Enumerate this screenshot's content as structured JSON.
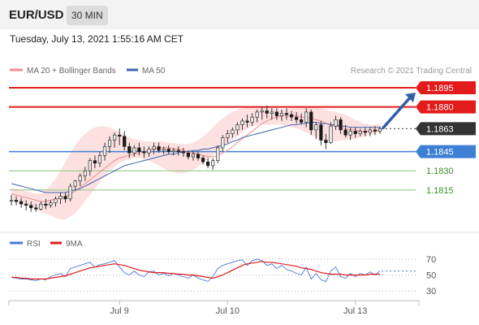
{
  "header": {
    "pair": "EUR/USD",
    "timeframe": "30 MIN",
    "datetime": "Tuesday, July 13, 2021 1:55:16 AM CET"
  },
  "legend": {
    "ma20_bb": "MA 20 + Bollinger Bands",
    "ma50": "MA 50",
    "copyright": "Research © 2021 Trading Central",
    "rsi": "RSI",
    "rsi_ma": "9MA"
  },
  "colors": {
    "ma20": "#f28a8a",
    "bands_fill": "#fde1e1",
    "ma50": "#3b63b0",
    "resistance": "#e31b1b",
    "pivot": "#3c7fd4",
    "support": "#89c47c",
    "support_text": "#3c8f2c",
    "current": "#333333",
    "bull_candle": "#e8e8e8",
    "bear_candle": "#1a1a1a",
    "rsi": "#4b78d8",
    "rsi_ma": "#e31b1b",
    "arrow": "#2e5fa8"
  },
  "chart_data": [
    {
      "type": "candlestick",
      "title": "EUR/USD 30 MIN",
      "ylim": [
        1.1785,
        1.1902
      ],
      "x_tick_labels": [
        "Jul 9",
        "Jul 10",
        "Jul 13"
      ],
      "ohlc": [
        [
          1.1807,
          1.1811,
          1.1803,
          1.1807
        ],
        [
          1.1807,
          1.181,
          1.1803,
          1.1806
        ],
        [
          1.1806,
          1.1809,
          1.1801,
          1.1804
        ],
        [
          1.1804,
          1.1807,
          1.1799,
          1.1803
        ],
        [
          1.1803,
          1.1806,
          1.1798,
          1.1801
        ],
        [
          1.1801,
          1.1804,
          1.1798,
          1.18
        ],
        [
          1.18,
          1.1806,
          1.1799,
          1.1804
        ],
        [
          1.1804,
          1.1808,
          1.18,
          1.1803
        ],
        [
          1.1803,
          1.1807,
          1.1801,
          1.1805
        ],
        [
          1.1805,
          1.181,
          1.1802,
          1.1808
        ],
        [
          1.1808,
          1.1813,
          1.1804,
          1.181
        ],
        [
          1.181,
          1.1813,
          1.1805,
          1.1808
        ],
        [
          1.1808,
          1.182,
          1.1806,
          1.1818
        ],
        [
          1.1818,
          1.1823,
          1.1815,
          1.1822
        ],
        [
          1.1822,
          1.1828,
          1.1818,
          1.1826
        ],
        [
          1.1826,
          1.1833,
          1.1822,
          1.183
        ],
        [
          1.183,
          1.184,
          1.1826,
          1.1838
        ],
        [
          1.1838,
          1.1842,
          1.1832,
          1.1836
        ],
        [
          1.1836,
          1.1845,
          1.1833,
          1.1842
        ],
        [
          1.1842,
          1.1852,
          1.1838,
          1.1849
        ],
        [
          1.1849,
          1.1857,
          1.1844,
          1.1854
        ],
        [
          1.1854,
          1.186,
          1.1848,
          1.1858
        ],
        [
          1.1858,
          1.1863,
          1.185,
          1.1857
        ],
        [
          1.1857,
          1.1861,
          1.1846,
          1.1849
        ],
        [
          1.1849,
          1.1852,
          1.184,
          1.1844
        ],
        [
          1.1844,
          1.185,
          1.1841,
          1.1848
        ],
        [
          1.1848,
          1.1852,
          1.1842,
          1.1845
        ],
        [
          1.1845,
          1.1849,
          1.184,
          1.1844
        ],
        [
          1.1844,
          1.1849,
          1.1841,
          1.1847
        ],
        [
          1.1847,
          1.1852,
          1.1843,
          1.1849
        ],
        [
          1.1849,
          1.1852,
          1.1844,
          1.1846
        ],
        [
          1.1846,
          1.1849,
          1.1843,
          1.1847
        ],
        [
          1.1847,
          1.185,
          1.1843,
          1.1845
        ],
        [
          1.1845,
          1.1848,
          1.1842,
          1.1846
        ],
        [
          1.1846,
          1.1849,
          1.1842,
          1.1845
        ],
        [
          1.1845,
          1.1848,
          1.1841,
          1.1844
        ],
        [
          1.1844,
          1.1846,
          1.1839,
          1.1841
        ],
        [
          1.1841,
          1.1845,
          1.1838,
          1.1843
        ],
        [
          1.1843,
          1.1845,
          1.1838,
          1.184
        ],
        [
          1.184,
          1.1842,
          1.1835,
          1.1837
        ],
        [
          1.1837,
          1.184,
          1.1832,
          1.1834
        ],
        [
          1.1834,
          1.184,
          1.1831,
          1.1838
        ],
        [
          1.1838,
          1.185,
          1.1836,
          1.1848
        ],
        [
          1.1848,
          1.1858,
          1.1845,
          1.1856
        ],
        [
          1.1856,
          1.1862,
          1.1852,
          1.1859
        ],
        [
          1.1859,
          1.1864,
          1.1856,
          1.1862
        ],
        [
          1.1862,
          1.1868,
          1.1858,
          1.1866
        ],
        [
          1.1866,
          1.1871,
          1.1862,
          1.1869
        ],
        [
          1.1869,
          1.1874,
          1.1864,
          1.1868
        ],
        [
          1.1868,
          1.1875,
          1.1865,
          1.1872
        ],
        [
          1.1872,
          1.1878,
          1.1868,
          1.1876
        ],
        [
          1.1876,
          1.188,
          1.187,
          1.1877
        ],
        [
          1.1877,
          1.1881,
          1.1871,
          1.1875
        ],
        [
          1.1875,
          1.1879,
          1.187,
          1.1876
        ],
        [
          1.1876,
          1.1879,
          1.187,
          1.1873
        ],
        [
          1.1873,
          1.1878,
          1.1869,
          1.1875
        ],
        [
          1.1875,
          1.1879,
          1.187,
          1.1874
        ],
        [
          1.1874,
          1.1877,
          1.1869,
          1.1872
        ],
        [
          1.1872,
          1.1876,
          1.1867,
          1.187
        ],
        [
          1.187,
          1.1875,
          1.1866,
          1.1868
        ],
        [
          1.1868,
          1.1879,
          1.1864,
          1.1876
        ],
        [
          1.1876,
          1.1878,
          1.1858,
          1.1862
        ],
        [
          1.1862,
          1.1868,
          1.1855,
          1.1866
        ],
        [
          1.1866,
          1.1869,
          1.185,
          1.1854
        ],
        [
          1.1854,
          1.1859,
          1.1847,
          1.1852
        ],
        [
          1.1852,
          1.1868,
          1.1851,
          1.1865
        ],
        [
          1.1865,
          1.1873,
          1.1862,
          1.187
        ],
        [
          1.187,
          1.1872,
          1.1859,
          1.1862
        ],
        [
          1.1862,
          1.1866,
          1.1856,
          1.1858
        ],
        [
          1.1858,
          1.1864,
          1.1854,
          1.1861
        ],
        [
          1.1861,
          1.1864,
          1.1856,
          1.1859
        ],
        [
          1.1859,
          1.1863,
          1.1857,
          1.1861
        ],
        [
          1.1861,
          1.1864,
          1.1857,
          1.186
        ],
        [
          1.186,
          1.1864,
          1.1857,
          1.1862
        ],
        [
          1.1862,
          1.1865,
          1.1858,
          1.1861
        ],
        [
          1.1861,
          1.1865,
          1.1859,
          1.1863
        ]
      ],
      "ma20": [
        1.1812,
        1.1811,
        1.181,
        1.1809,
        1.1808,
        1.1807,
        1.1806,
        1.1806,
        1.1807,
        1.1808,
        1.1809,
        1.181,
        1.1812,
        1.1814,
        1.1817,
        1.182,
        1.1823,
        1.1826,
        1.1829,
        1.1832,
        1.1835,
        1.1838,
        1.184,
        1.1841,
        1.1842,
        1.1843,
        1.1844,
        1.1845,
        1.1846,
        1.1847,
        1.1848,
        1.1848,
        1.1848,
        1.1847,
        1.1847,
        1.1846,
        1.1845,
        1.1844,
        1.1843,
        1.1842,
        1.1841,
        1.1841,
        1.1842,
        1.1844,
        1.1846,
        1.1849,
        1.1852,
        1.1855,
        1.1858,
        1.1861,
        1.1864,
        1.1867,
        1.1869,
        1.1871,
        1.1872,
        1.1873,
        1.1873,
        1.1873,
        1.1873,
        1.1872,
        1.1872,
        1.1871,
        1.187,
        1.1869,
        1.1867,
        1.1866,
        1.1865,
        1.1864,
        1.1863,
        1.1862,
        1.1862,
        1.1861,
        1.1861,
        1.1861,
        1.1861,
        1.1862
      ],
      "bb_upper": [
        1.1817,
        1.1816,
        1.1815,
        1.1814,
        1.1813,
        1.1812,
        1.1812,
        1.1815,
        1.1819,
        1.1824,
        1.183,
        1.1837,
        1.1844,
        1.185,
        1.1855,
        1.1859,
        1.1862,
        1.1864,
        1.1865,
        1.1865,
        1.1864,
        1.1862,
        1.186,
        1.1858,
        1.1856,
        1.1855,
        1.1854,
        1.1853,
        1.1853,
        1.1853,
        1.1853,
        1.1853,
        1.1852,
        1.1852,
        1.1851,
        1.1851,
        1.1851,
        1.1852,
        1.1854,
        1.1857,
        1.186,
        1.1864,
        1.1868,
        1.1871,
        1.1874,
        1.1876,
        1.1878,
        1.1879,
        1.188,
        1.188,
        1.188,
        1.188,
        1.1879,
        1.1879,
        1.1878,
        1.1878,
        1.1878,
        1.1879,
        1.188,
        1.188,
        1.188,
        1.188,
        1.188,
        1.1879,
        1.1878,
        1.1877,
        1.1876,
        1.1875,
        1.1874,
        1.1872,
        1.187,
        1.1868,
        1.1867,
        1.1866,
        1.1866,
        1.1867
      ],
      "bb_lower": [
        1.1806,
        1.1805,
        1.1804,
        1.1803,
        1.1802,
        1.18,
        1.1798,
        1.1796,
        1.1795,
        1.1793,
        1.1792,
        1.1792,
        1.1794,
        1.1797,
        1.1801,
        1.1806,
        1.1811,
        1.1816,
        1.1821,
        1.1826,
        1.183,
        1.1833,
        1.1836,
        1.1838,
        1.1839,
        1.184,
        1.184,
        1.1839,
        1.1838,
        1.1836,
        1.1834,
        1.1832,
        1.183,
        1.1829,
        1.1828,
        1.1828,
        1.1829,
        1.1831,
        1.1833,
        1.1836,
        1.1839,
        1.1842,
        1.1845,
        1.1848,
        1.1851,
        1.1854,
        1.1857,
        1.186,
        1.1863,
        1.1865,
        1.1866,
        1.1866,
        1.1866,
        1.1866,
        1.1866,
        1.1866,
        1.1865,
        1.1864,
        1.1863,
        1.1862,
        1.186,
        1.1858,
        1.1856,
        1.1854,
        1.1853,
        1.1853,
        1.1853,
        1.1854,
        1.1854,
        1.1855,
        1.1855,
        1.1856,
        1.1857,
        1.1858,
        1.1859,
        1.186
      ],
      "ma50": [
        1.182,
        1.1819,
        1.1818,
        1.1817,
        1.1816,
        1.1815,
        1.1814,
        1.1813,
        1.1813,
        1.1813,
        1.1813,
        1.1813,
        1.1814,
        1.1815,
        1.1816,
        1.1818,
        1.182,
        1.1822,
        1.1824,
        1.1826,
        1.1828,
        1.183,
        1.1832,
        1.1834,
        1.1835,
        1.1836,
        1.1837,
        1.1838,
        1.1839,
        1.184,
        1.1841,
        1.1842,
        1.1843,
        1.1843,
        1.1844,
        1.1845,
        1.1845,
        1.1846,
        1.1846,
        1.1847,
        1.1847,
        1.1848,
        1.1849,
        1.185,
        1.1851,
        1.1853,
        1.1854,
        1.1856,
        1.1857,
        1.1858,
        1.1859,
        1.186,
        1.1861,
        1.1862,
        1.1863,
        1.1864,
        1.1865,
        1.1866,
        1.1866,
        1.1867,
        1.1867,
        1.1868,
        1.1868,
        1.1867,
        1.1867,
        1.1866,
        1.1866,
        1.1865,
        1.1865,
        1.1864,
        1.1864,
        1.1864,
        1.1864,
        1.1864,
        1.1864,
        1.1864
      ],
      "levels": [
        {
          "label": "1.1895",
          "value": 1.1895,
          "kind": "resistance"
        },
        {
          "label": "1.1880",
          "value": 1.188,
          "kind": "resistance"
        },
        {
          "label": "1.1863",
          "value": 1.1863,
          "kind": "current"
        },
        {
          "label": "1.1845",
          "value": 1.1845,
          "kind": "pivot"
        },
        {
          "label": "1.1830",
          "value": 1.183,
          "kind": "support"
        },
        {
          "label": "1.1815",
          "value": 1.1815,
          "kind": "support"
        }
      ],
      "forecast_arrow": {
        "from": 1.1863,
        "to": 1.1895,
        "direction": "up"
      },
      "grid": false
    },
    {
      "type": "line",
      "title": "RSI",
      "ylim": [
        20,
        80
      ],
      "y_ticks": [
        70,
        50,
        30
      ],
      "series": [
        {
          "name": "RSI",
          "values": [
            47,
            46,
            45,
            45,
            44,
            43,
            45,
            44,
            48,
            50,
            52,
            48,
            58,
            60,
            62,
            64,
            66,
            60,
            63,
            64,
            66,
            68,
            60,
            53,
            50,
            55,
            50,
            48,
            54,
            55,
            50,
            52,
            49,
            52,
            50,
            48,
            46,
            50,
            46,
            44,
            42,
            48,
            58,
            62,
            64,
            66,
            68,
            69,
            62,
            68,
            70,
            68,
            62,
            64,
            58,
            62,
            57,
            55,
            52,
            50,
            60,
            45,
            52,
            44,
            42,
            55,
            60,
            48,
            46,
            52,
            48,
            52,
            50,
            54,
            50,
            55
          ]
        },
        {
          "name": "9MA",
          "values": [
            47,
            47,
            46,
            46,
            45,
            45,
            45,
            45,
            46,
            47,
            48,
            49,
            51,
            53,
            55,
            57,
            59,
            60,
            61,
            62,
            63,
            64,
            63,
            62,
            60,
            58,
            56,
            55,
            54,
            53,
            53,
            53,
            52,
            52,
            51,
            51,
            50,
            50,
            49,
            48,
            47,
            46,
            48,
            50,
            53,
            56,
            59,
            62,
            64,
            65,
            66,
            67,
            66,
            66,
            65,
            64,
            63,
            62,
            61,
            59,
            58,
            57,
            55,
            53,
            52,
            51,
            51,
            51,
            50,
            50,
            50,
            50,
            50,
            51,
            51,
            51
          ]
        }
      ],
      "grid": false
    }
  ]
}
